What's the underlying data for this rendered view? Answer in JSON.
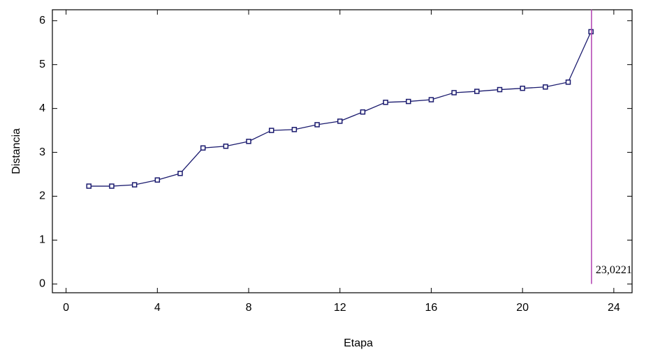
{
  "chart_data": {
    "type": "line",
    "x_label": "Etapa",
    "y_label": "Distancia",
    "x": [
      1,
      2,
      3,
      4,
      5,
      6,
      7,
      8,
      9,
      10,
      11,
      12,
      13,
      14,
      15,
      16,
      17,
      18,
      19,
      20,
      21,
      22,
      23
    ],
    "series": [
      {
        "color": "#1a1a6e",
        "values": [
          2.23,
          2.23,
          2.26,
          2.37,
          2.52,
          3.1,
          3.14,
          3.25,
          3.5,
          3.52,
          3.63,
          3.71,
          3.92,
          4.14,
          4.16,
          4.2,
          4.36,
          4.39,
          4.43,
          4.46,
          4.49,
          4.6,
          5.75
        ]
      }
    ],
    "xlim": [
      -0.6,
      24.8
    ],
    "xticks": [
      0,
      4,
      8,
      12,
      16,
      20,
      24
    ],
    "ylim": [
      -0.2,
      6.25
    ],
    "yticks": [
      0,
      1,
      2,
      3,
      4,
      5,
      6
    ],
    "vline": {
      "x": {
        "value": 23.0221,
        "label": "23,0221"
      },
      "y": [
        0,
        6
      ],
      "color": "#b040b0"
    }
  }
}
